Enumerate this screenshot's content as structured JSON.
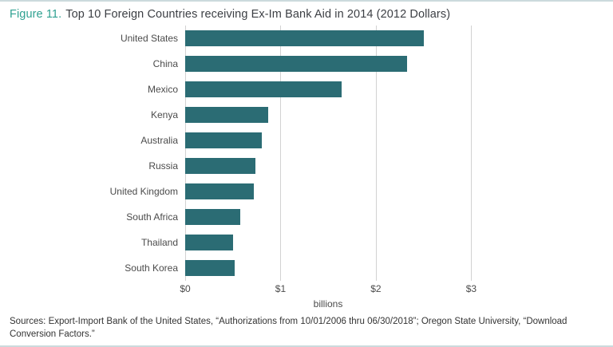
{
  "figure": {
    "label": "Figure 11.",
    "title": "Top 10 Foreign Countries receiving Ex-Im Bank Aid in 2014 (2012 Dollars)"
  },
  "chart_data": {
    "type": "bar",
    "orientation": "horizontal",
    "title": "Top 10 Foreign Countries receiving Ex-Im Bank Aid in 2014 (2012 Dollars)",
    "categories": [
      "United States",
      "China",
      "Mexico",
      "Kenya",
      "Australia",
      "Russia",
      "United Kingdom",
      "South Africa",
      "Thailand",
      "South Korea"
    ],
    "values": [
      2.5,
      2.33,
      1.64,
      0.87,
      0.8,
      0.74,
      0.72,
      0.58,
      0.5,
      0.52
    ],
    "x_ticks": [
      "$0",
      "$1",
      "$2",
      "$3"
    ],
    "x_tick_values": [
      0,
      1,
      2,
      3
    ],
    "xlabel": "billions",
    "ylabel": "",
    "xlim": [
      0,
      3.75
    ],
    "grid": true,
    "legend": false,
    "bar_color": "#2b6c74"
  },
  "footer": {
    "sources": "Sources: Export-Import Bank of the United States, “Authorizations from 10/01/2006 thru 06/30/2018”; Oregon State University, “Download Conversion Factors.”"
  },
  "colors": {
    "accent": "#2fa191",
    "bar": "#2b6c74",
    "text": "#3c3f44",
    "grid": "#d2d2d2",
    "rule": "#ccdadd"
  }
}
